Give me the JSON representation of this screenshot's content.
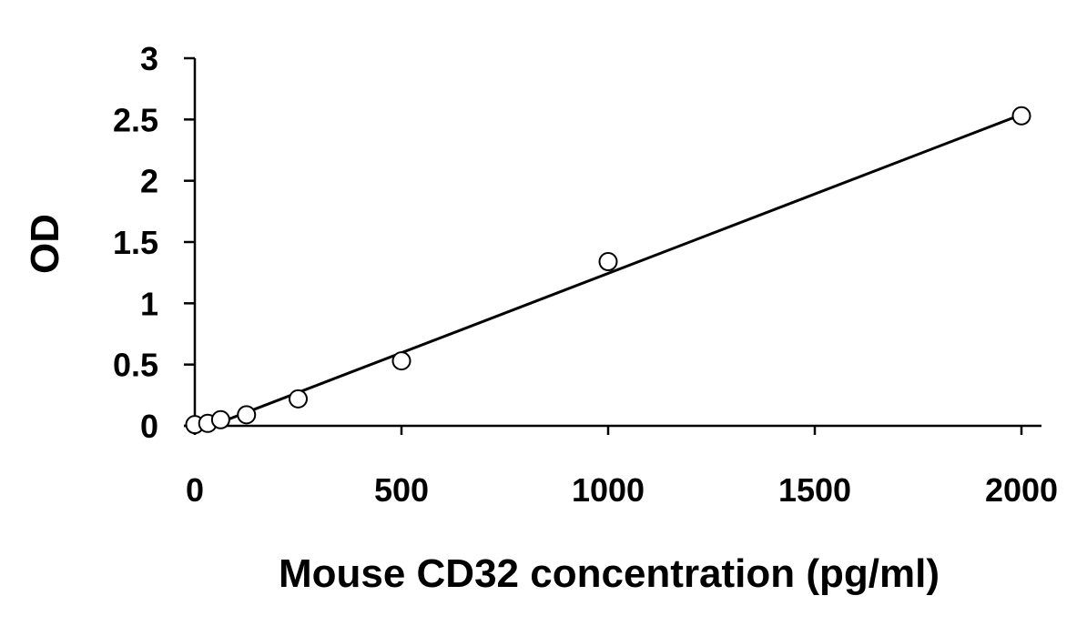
{
  "chart_data": {
    "type": "scatter",
    "title": "",
    "xlabel": "Mouse CD32 concentration (pg/ml)",
    "ylabel": "OD",
    "xlim": [
      0,
      2000
    ],
    "ylim": [
      0,
      3
    ],
    "x_ticks": [
      "0",
      "500",
      "1000",
      "1500",
      "2000"
    ],
    "y_ticks": [
      "0",
      "0.5",
      "1",
      "1.5",
      "2",
      "2.5",
      "3"
    ],
    "grid": false,
    "legend": "none",
    "series": [
      {
        "marker": "open-circle",
        "points": [
          {
            "x": 0,
            "y": 0.01
          },
          {
            "x": 31.25,
            "y": 0.02
          },
          {
            "x": 62.5,
            "y": 0.05
          },
          {
            "x": 125,
            "y": 0.09
          },
          {
            "x": 250,
            "y": 0.22
          },
          {
            "x": 500,
            "y": 0.53
          },
          {
            "x": 1000,
            "y": 1.34
          },
          {
            "x": 2000,
            "y": 2.53
          }
        ]
      }
    ],
    "trendline": {
      "type": "linear",
      "start": {
        "x": 40,
        "y": 0.0
      },
      "end": {
        "x": 2000,
        "y": 2.54
      }
    },
    "colors": {
      "axis": "#000000",
      "marker_stroke": "#000000",
      "marker_fill": "#ffffff",
      "line": "#000000"
    }
  }
}
